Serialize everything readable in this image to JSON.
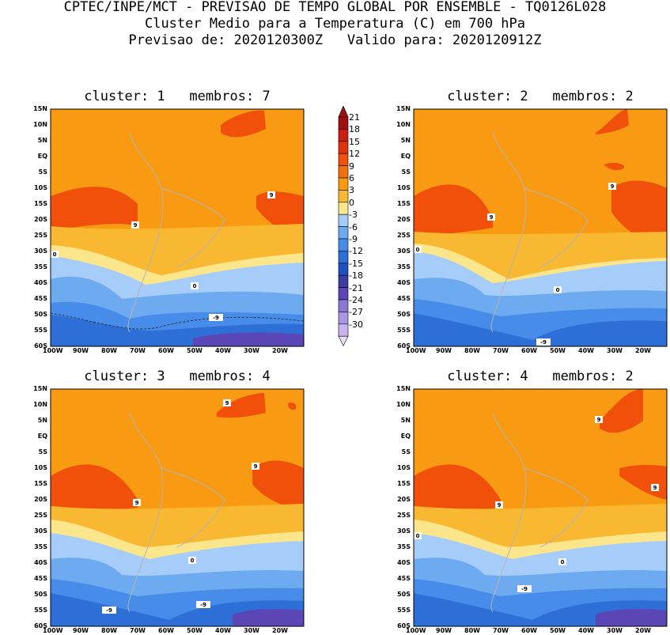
{
  "header": {
    "line1": "CPTEC/INPE/MCT - PREVISAO DE TEMPO GLOBAL POR ENSEMBLE - TQ0126L028",
    "line2": "Cluster Medio para a Temperatura (C) em 700 hPa",
    "line3": "Previsao de: 2020120300Z   Valido para: 2020120912Z"
  },
  "panels": [
    {
      "title": "cluster: 1   membros: 7",
      "labels": [
        "9",
        "9",
        "0",
        "0",
        "-9"
      ]
    },
    {
      "title": "cluster: 2   membros: 2",
      "labels": [
        "9",
        "9",
        "0",
        "0",
        "-9"
      ]
    },
    {
      "title": "cluster: 3   membros: 4",
      "labels": [
        "9",
        "9",
        "9",
        "0",
        "-9",
        "-9"
      ]
    },
    {
      "title": "cluster: 4   membros: 2",
      "labels": [
        "9",
        "9",
        "9",
        "0",
        "0",
        "-9"
      ]
    }
  ],
  "lat_ticks": [
    "15N",
    "10N",
    "5N",
    "EQ",
    "5S",
    "10S",
    "15S",
    "20S",
    "25S",
    "30S",
    "35S",
    "40S",
    "45S",
    "50S",
    "55S",
    "60S"
  ],
  "lon_ticks": [
    "100W",
    "90W",
    "80W",
    "70W",
    "60W",
    "50W",
    "40W",
    "30W",
    "20W"
  ],
  "colorbar": {
    "labels": [
      "21",
      "18",
      "15",
      "12",
      "9",
      "6",
      "3",
      "0",
      "-3",
      "-6",
      "-9",
      "-12",
      "-15",
      "-18",
      "-21",
      "-24",
      "-27",
      "-30"
    ],
    "colors": [
      "#a01010",
      "#c81e14",
      "#e0320a",
      "#f0500a",
      "#f07010",
      "#f89b12",
      "#f8b832",
      "#fce68c",
      "#a6cdfa",
      "#6eaaf0",
      "#468ce8",
      "#2d6ed7",
      "#1e50be",
      "#3c3ca0",
      "#5a46b4",
      "#8c78d2",
      "#aa96e6",
      "#c8b4f0"
    ]
  }
}
